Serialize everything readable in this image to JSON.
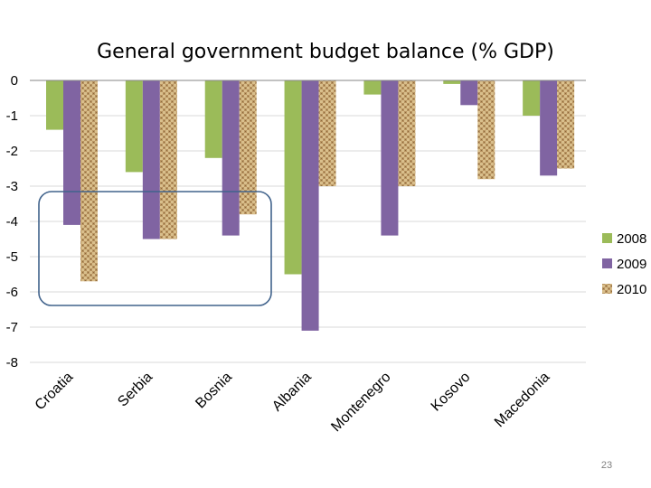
{
  "slide": {
    "page_number": "23"
  },
  "chart_data": {
    "type": "bar",
    "title": "General government budget balance (% GDP)",
    "categories": [
      "Croatia",
      "Serbia",
      "Bosnia",
      "Albania",
      "Montenegro",
      "Kosovo",
      "Macedonia"
    ],
    "series": [
      {
        "name": "2008",
        "color": "#9bbb59",
        "values": [
          -1.4,
          -2.6,
          -2.2,
          -5.5,
          -0.4,
          -0.1,
          -1.0
        ]
      },
      {
        "name": "2009",
        "color": "#8064a2",
        "values": [
          -4.1,
          -4.5,
          -4.4,
          -7.1,
          -4.4,
          -0.7,
          -2.7
        ]
      },
      {
        "name": "2010",
        "color": "#c9a66b",
        "values": [
          -5.7,
          -4.5,
          -3.8,
          -3.0,
          -3.0,
          -2.8,
          -2.5
        ]
      }
    ],
    "y_ticks": [
      "0",
      "-1",
      "-2",
      "-3",
      "-4",
      "-5",
      "-6",
      "-7",
      "-8"
    ],
    "ylim": [
      -8,
      0
    ],
    "xlabel": "",
    "ylabel": "",
    "legend_position": "right",
    "highlight": {
      "categories": [
        "Croatia",
        "Serbia",
        "Bosnia"
      ],
      "shape": "rounded-rectangle",
      "color": "#41638c"
    }
  }
}
